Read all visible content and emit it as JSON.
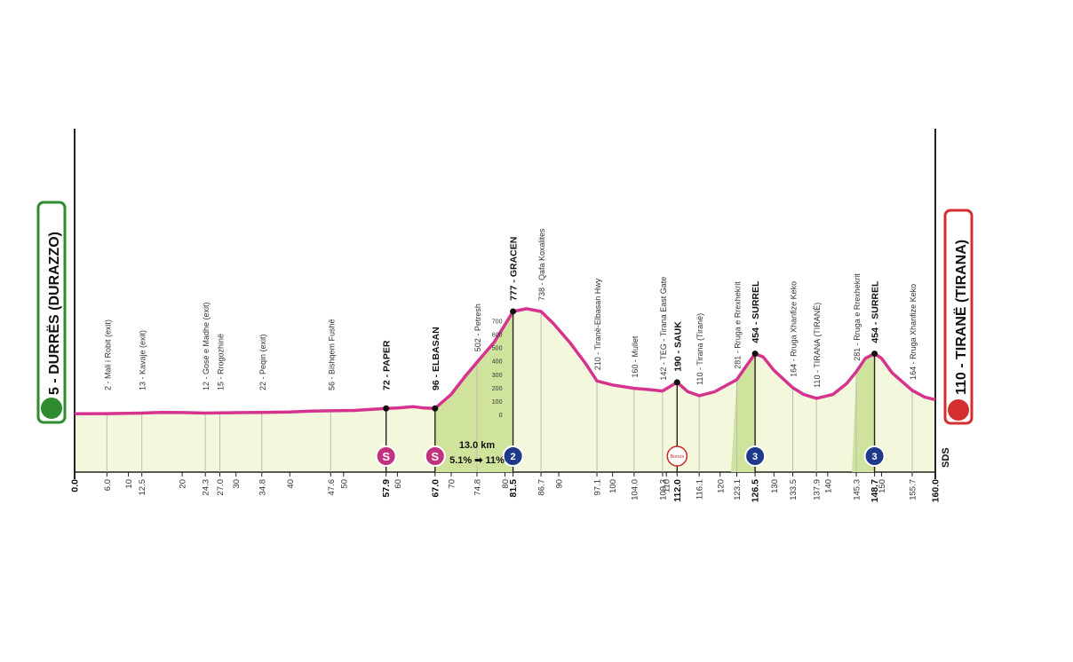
{
  "chart_data": {
    "type": "area",
    "xlim": [
      0,
      160
    ],
    "colors": {
      "profile_line": "#d6338f",
      "fill": "#f3f8dc",
      "climb_fill": "#cfe39d",
      "start_border": "#2e8b2e",
      "finish_border": "#d32f2f",
      "sprint": "#c2327f",
      "kom": "#1f3a8a"
    },
    "start": {
      "label": "5 - DURRËS (DURAZZO)",
      "km": 0,
      "elevation": 5,
      "icon": "cyclist-icon"
    },
    "finish": {
      "label": "110 - TIRANË (TIRANA)",
      "km": 160,
      "elevation": 110,
      "icon": "cyclist-icon"
    },
    "profile": [
      [
        0,
        5
      ],
      [
        6,
        6
      ],
      [
        10,
        8
      ],
      [
        12.5,
        10
      ],
      [
        16,
        15
      ],
      [
        20,
        14
      ],
      [
        24.3,
        10
      ],
      [
        27,
        11
      ],
      [
        30,
        13
      ],
      [
        34.8,
        15
      ],
      [
        40,
        18
      ],
      [
        44,
        25
      ],
      [
        47.6,
        27
      ],
      [
        52,
        30
      ],
      [
        57.9,
        45
      ],
      [
        60,
        48
      ],
      [
        63,
        58
      ],
      [
        65,
        48
      ],
      [
        67,
        45
      ],
      [
        70,
        150
      ],
      [
        72.5,
        280
      ],
      [
        74.8,
        390
      ],
      [
        78,
        540
      ],
      [
        81.5,
        770
      ],
      [
        84,
        790
      ],
      [
        86.7,
        770
      ],
      [
        89,
        680
      ],
      [
        92,
        540
      ],
      [
        95,
        380
      ],
      [
        97.1,
        250
      ],
      [
        100,
        220
      ],
      [
        104,
        195
      ],
      [
        107,
        185
      ],
      [
        109.3,
        175
      ],
      [
        112,
        240
      ],
      [
        114,
        170
      ],
      [
        116.1,
        140
      ],
      [
        119,
        170
      ],
      [
        123.1,
        260
      ],
      [
        125,
        370
      ],
      [
        126.5,
        454
      ],
      [
        128,
        430
      ],
      [
        130,
        330
      ],
      [
        133.5,
        200
      ],
      [
        135.5,
        150
      ],
      [
        137.9,
        120
      ],
      [
        141,
        150
      ],
      [
        143.5,
        230
      ],
      [
        145.3,
        320
      ],
      [
        147,
        420
      ],
      [
        148.7,
        454
      ],
      [
        150,
        420
      ],
      [
        152,
        310
      ],
      [
        155.7,
        180
      ],
      [
        158,
        130
      ],
      [
        160,
        110
      ]
    ],
    "y_scale": [
      0,
      100,
      200,
      300,
      400,
      500,
      600,
      700
    ],
    "climb": {
      "length": "13.0 km",
      "gradient": "5.1% ➡ 11%"
    },
    "x_ticks": [
      {
        "km": 0,
        "label": "0.0",
        "bold": true
      },
      {
        "km": 6.0,
        "label": "6.0"
      },
      {
        "km": 10,
        "label": "10"
      },
      {
        "km": 12.5,
        "label": "12.5"
      },
      {
        "km": 20,
        "label": "20"
      },
      {
        "km": 24.3,
        "label": "24.3"
      },
      {
        "km": 27.0,
        "label": "27.0"
      },
      {
        "km": 30,
        "label": "30"
      },
      {
        "km": 34.8,
        "label": "34.8"
      },
      {
        "km": 40,
        "label": "40"
      },
      {
        "km": 47.6,
        "label": "47.6"
      },
      {
        "km": 50,
        "label": "50"
      },
      {
        "km": 57.9,
        "label": "57.9",
        "bold": true
      },
      {
        "km": 60,
        "label": "60"
      },
      {
        "km": 67.0,
        "label": "67.0",
        "bold": true
      },
      {
        "km": 70,
        "label": "70"
      },
      {
        "km": 74.8,
        "label": "74.8"
      },
      {
        "km": 80,
        "label": "80"
      },
      {
        "km": 81.5,
        "label": "81.5",
        "bold": true
      },
      {
        "km": 86.7,
        "label": "86.7"
      },
      {
        "km": 90,
        "label": "90"
      },
      {
        "km": 97.1,
        "label": "97.1"
      },
      {
        "km": 100,
        "label": "100"
      },
      {
        "km": 104.0,
        "label": "104.0"
      },
      {
        "km": 109.3,
        "label": "109.3"
      },
      {
        "km": 110,
        "label": "110"
      },
      {
        "km": 112.0,
        "label": "112.0",
        "bold": true
      },
      {
        "km": 116.1,
        "label": "116.1"
      },
      {
        "km": 120,
        "label": "120"
      },
      {
        "km": 123.1,
        "label": "123.1"
      },
      {
        "km": 126.5,
        "label": "126.5",
        "bold": true
      },
      {
        "km": 130,
        "label": "130"
      },
      {
        "km": 133.5,
        "label": "133.5"
      },
      {
        "km": 137.9,
        "label": "137.9"
      },
      {
        "km": 140,
        "label": "140"
      },
      {
        "km": 145.3,
        "label": "145.3"
      },
      {
        "km": 148.7,
        "label": "148.7",
        "bold": true
      },
      {
        "km": 150,
        "label": "150"
      },
      {
        "km": 155.7,
        "label": "155.7"
      },
      {
        "km": 160,
        "label": "160.0",
        "bold": true
      }
    ],
    "waypoints": [
      {
        "km": 6.0,
        "label": "2 - Mali i Robit (exit)"
      },
      {
        "km": 12.5,
        "label": "13 - Kavaje (exit)"
      },
      {
        "km": 24.3,
        "label": "12 - Gosë e Madhe (exit)"
      },
      {
        "km": 27.0,
        "label": "15 - Rrogozhinë"
      },
      {
        "km": 34.8,
        "label": "22 - Peqin (exit)"
      },
      {
        "km": 47.6,
        "label": "56 - Bishqem Fushë"
      },
      {
        "km": 57.9,
        "label": "72 - PAPER",
        "bold": true,
        "dot": true
      },
      {
        "km": 67.0,
        "label": "96 - ELBASAN",
        "bold": true,
        "dot": true
      },
      {
        "km": 74.8,
        "label": "502 - Petresh"
      },
      {
        "km": 81.5,
        "label": "777 - GRACEN",
        "bold": true,
        "dot": true
      },
      {
        "km": 86.7,
        "label": "738 - Qafa Koxalites"
      },
      {
        "km": 97.1,
        "label": "210 - Tiranë-Elbasan Hwy"
      },
      {
        "km": 104.0,
        "label": "160 - Mullet"
      },
      {
        "km": 109.3,
        "label": "142 - TEG - Tirana East Gate"
      },
      {
        "km": 112.0,
        "label": "190 - SAUK",
        "bold": true,
        "dot": true
      },
      {
        "km": 116.1,
        "label": "110 - Tirana (Tiranë)"
      },
      {
        "km": 123.1,
        "label": "281 - Rruga e Rrexhekrit"
      },
      {
        "km": 126.5,
        "label": "454 - SURREL",
        "bold": true,
        "dot": true
      },
      {
        "km": 133.5,
        "label": "164 - Rruga Xhanfize Keko"
      },
      {
        "km": 137.9,
        "label": "110 - TIRANA (TIRANË)"
      },
      {
        "km": 145.3,
        "label": "281 - Rruga e Rrexhekrit"
      },
      {
        "km": 148.7,
        "label": "454 - SURREL",
        "bold": true,
        "dot": true
      },
      {
        "km": 155.7,
        "label": "164 - Rruga Xhanfize Keko"
      }
    ],
    "markers": [
      {
        "km": 57.9,
        "kind": "sprint",
        "text": "S"
      },
      {
        "km": 67.0,
        "kind": "sprint",
        "text": "S"
      },
      {
        "km": 81.5,
        "kind": "kom",
        "text": "2"
      },
      {
        "km": 112.0,
        "kind": "bonus",
        "text": "Bonus"
      },
      {
        "km": 126.5,
        "kind": "kom",
        "text": "3"
      },
      {
        "km": 148.7,
        "kind": "kom",
        "text": "3"
      }
    ],
    "climb_zones": [
      [
        67.0,
        81.5
      ],
      [
        122,
        126.5
      ],
      [
        144.5,
        148.7
      ]
    ],
    "watermark": "SDS"
  }
}
